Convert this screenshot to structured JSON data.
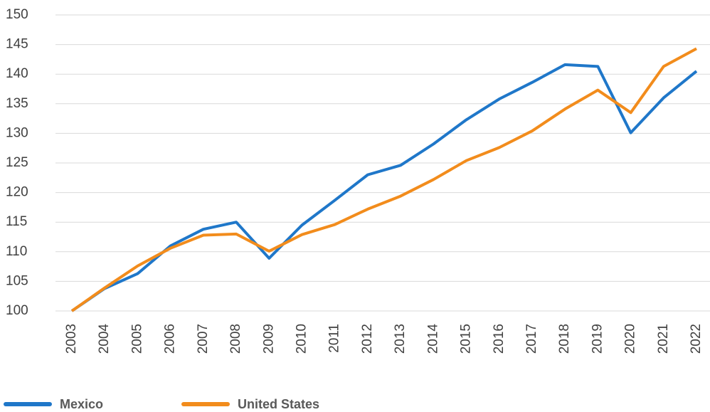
{
  "chart_data": {
    "type": "line",
    "categories": [
      "2003",
      "2004",
      "2005",
      "2006",
      "2007",
      "2008",
      "2009",
      "2010",
      "2011",
      "2012",
      "2013",
      "2014",
      "2015",
      "2016",
      "2017",
      "2018",
      "2019",
      "2020",
      "2021",
      "2022"
    ],
    "series": [
      {
        "name": "Mexico",
        "color": "#1f77c9",
        "values": [
          100,
          103.8,
          106.3,
          111,
          113.8,
          115,
          108.9,
          114.5,
          118.7,
          123,
          124.6,
          128.2,
          132.3,
          135.8,
          138.6,
          141.6,
          141.3,
          130.1,
          136,
          140.5
        ]
      },
      {
        "name": "United States",
        "color": "#f28c1c",
        "values": [
          100,
          103.9,
          107.6,
          110.6,
          112.8,
          113,
          110.1,
          112.9,
          114.6,
          117.2,
          119.4,
          122.2,
          125.4,
          127.6,
          130.4,
          134.1,
          137.3,
          133.5,
          141.3,
          144.3
        ]
      }
    ],
    "ylim": [
      100,
      150
    ],
    "yticks": [
      100,
      105,
      110,
      115,
      120,
      125,
      130,
      135,
      140,
      145,
      150
    ],
    "grid": true
  }
}
